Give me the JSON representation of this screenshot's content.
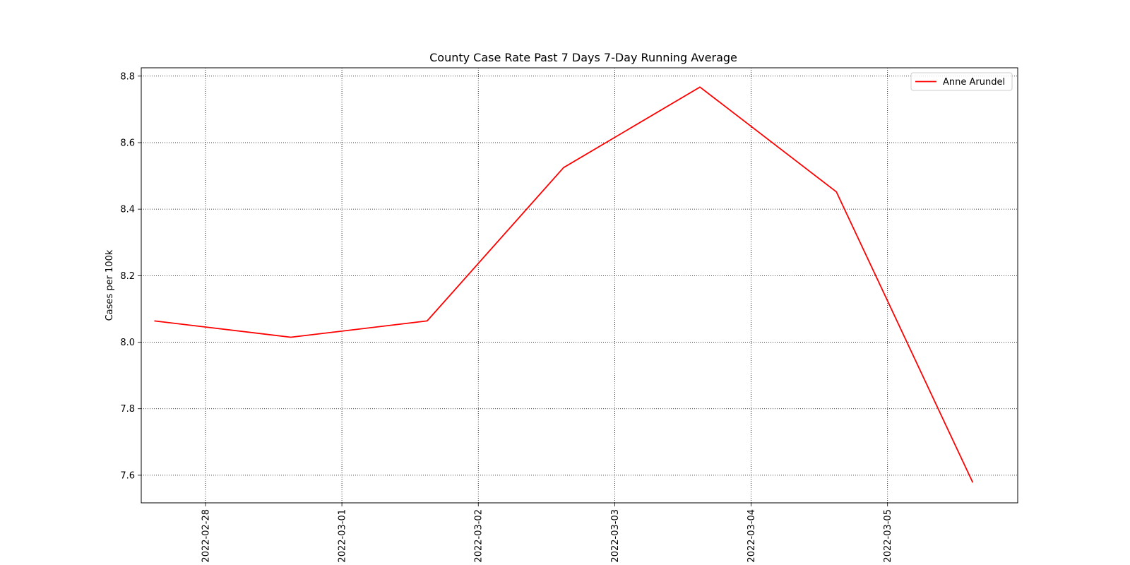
{
  "chart_data": {
    "type": "line",
    "title": "County Case Rate  Past 7 Days 7-Day Running Average",
    "xlabel": "",
    "ylabel": "Cases per 100k",
    "x_ticks": [
      "2022-02-28",
      "2022-03-01",
      "2022-03-02",
      "2022-03-03",
      "2022-03-04",
      "2022-03-05"
    ],
    "y_ticks": [
      "7.6",
      "7.8",
      "8.0",
      "8.2",
      "8.4",
      "8.6",
      "8.8"
    ],
    "xlim": [
      "2022-02-27T12:42",
      "2022-03-05T22:54"
    ],
    "ylim": [
      7.517,
      8.825
    ],
    "grid": true,
    "grid_style": "dotted",
    "legend_position": "top-right",
    "series": [
      {
        "name": "Anne Arundel",
        "color": "#ff0000",
        "x": [
          "2022-02-27T15:00",
          "2022-02-28T15:00",
          "2022-03-01T15:00",
          "2022-03-02T15:00",
          "2022-03-03T15:00",
          "2022-03-04T15:00",
          "2022-03-05T15:00"
        ],
        "values": [
          8.064,
          8.015,
          8.064,
          8.525,
          8.767,
          8.452,
          7.578
        ]
      }
    ]
  }
}
